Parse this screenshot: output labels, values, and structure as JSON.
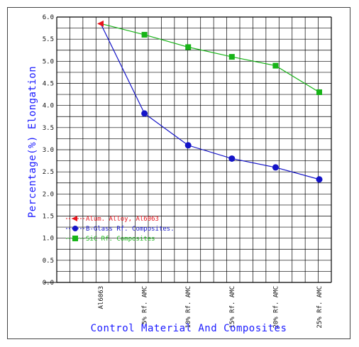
{
  "chart_data": {
    "type": "line",
    "title": "",
    "xlabel": "Control Material And Composites",
    "ylabel": "Percentage(%) Elongation",
    "ylim": [
      0.0,
      6.0
    ],
    "y_ticks": [
      "0.0",
      "0.5",
      "1.0",
      "1.5",
      "2.0",
      "2.5",
      "3.0",
      "3.5",
      "4.0",
      "4.5",
      "5.0",
      "5.5",
      "6.0"
    ],
    "categories": [
      "Al6063",
      "5% Rf. AMC",
      "10% Rf. AMC",
      "15% Rf. AMC",
      "20% Rf. AMC",
      "25% Rf. AMC"
    ],
    "grid": true,
    "legend_position": "bottom-left",
    "series": [
      {
        "name": "Alum. Alloy, Al6063",
        "color": "#e8141c",
        "marker": "triangle-left",
        "values": [
          5.85,
          null,
          null,
          null,
          null,
          null
        ]
      },
      {
        "name": "B-Glass Rf. Composites.",
        "color": "#1414c8",
        "marker": "circle",
        "values": [
          5.85,
          3.82,
          3.1,
          2.8,
          2.6,
          2.33
        ]
      },
      {
        "name": "SiC Rf. Composites",
        "color": "#18b418",
        "marker": "square",
        "values": [
          5.85,
          5.6,
          5.32,
          5.1,
          4.9,
          4.3
        ]
      }
    ]
  }
}
